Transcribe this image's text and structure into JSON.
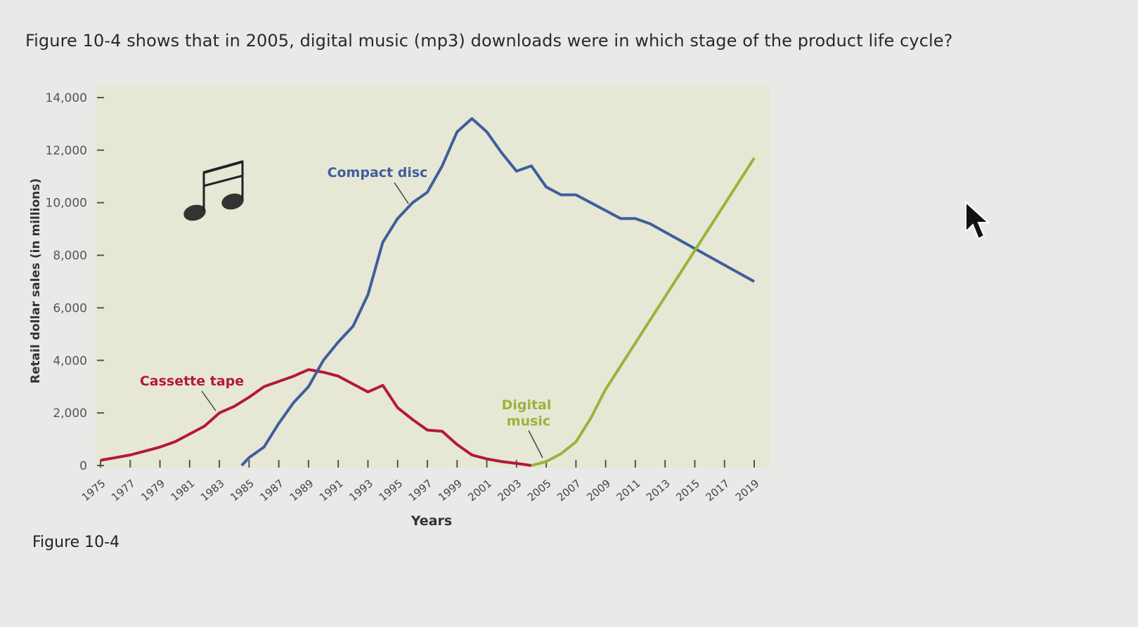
{
  "question": "Figure 10-4 shows that in 2005, digital music (mp3) downloads were in which stage of the product life cycle?",
  "figure_caption": "Figure 10-4",
  "chart_data": {
    "type": "line",
    "title": "",
    "xlabel": "Years",
    "ylabel": "Retail dollar sales (in millions)",
    "xlim": [
      1975,
      2019
    ],
    "ylim": [
      0,
      14000
    ],
    "x_tick_labels": [
      "1975",
      "1977",
      "1979",
      "1981",
      "1983",
      "1985",
      "1987",
      "1989",
      "1991",
      "1993",
      "1995",
      "1997",
      "1999",
      "2001",
      "2003",
      "2005",
      "2007",
      "2009",
      "2011",
      "2013",
      "2015",
      "2017",
      "2019"
    ],
    "y_tick_labels": [
      "0",
      "2,000",
      "4,000",
      "6,000",
      "8,000",
      "10,000",
      "12,000",
      "14,000"
    ],
    "y_ticks": [
      0,
      2000,
      4000,
      6000,
      8000,
      10000,
      12000,
      14000
    ],
    "grid": false,
    "background": "#e6e8d5",
    "series": [
      {
        "name": "Cassette tape",
        "color": "#b5173f",
        "x": [
          1975,
          1976,
          1977,
          1978,
          1979,
          1980,
          1981,
          1982,
          1983,
          1984,
          1985,
          1986,
          1987,
          1988,
          1989,
          1990,
          1991,
          1992,
          1993,
          1994,
          1995,
          1996,
          1997,
          1998,
          1999,
          2000,
          2001,
          2002,
          2003,
          2004
        ],
        "y": [
          200,
          300,
          400,
          550,
          700,
          900,
          1200,
          1500,
          2000,
          2250,
          2600,
          3000,
          3200,
          3400,
          3650,
          3550,
          3400,
          3100,
          2800,
          3050,
          2200,
          1750,
          1350,
          1300,
          800,
          400,
          250,
          150,
          80,
          0
        ]
      },
      {
        "name": "Compact disc",
        "color": "#3f5e9c",
        "x": [
          1984.5,
          1985,
          1986,
          1987,
          1988,
          1989,
          1990,
          1991,
          1992,
          1993,
          1994,
          1995,
          1996,
          1997,
          1998,
          1999,
          2000,
          2001,
          2002,
          2003,
          2004,
          2005,
          2006,
          2007,
          2008,
          2009,
          2010,
          2011,
          2012,
          2019
        ],
        "y": [
          0,
          300,
          700,
          1600,
          2400,
          3000,
          4000,
          4700,
          5300,
          6500,
          8500,
          9400,
          10000,
          10400,
          11400,
          12700,
          13200,
          12700,
          11900,
          11200,
          11400,
          10600,
          10300,
          10300,
          10000,
          9700,
          9400,
          9400,
          9200,
          7000
        ]
      },
      {
        "name": "Digital music",
        "color": "#98b43c",
        "x": [
          2004,
          2005,
          2006,
          2007,
          2008,
          2009,
          2019
        ],
        "y": [
          0,
          150,
          450,
          900,
          1800,
          2900,
          11700
        ]
      }
    ],
    "annotations": [
      "Cassette tape",
      "Compact disc",
      "Digital",
      "music"
    ]
  }
}
